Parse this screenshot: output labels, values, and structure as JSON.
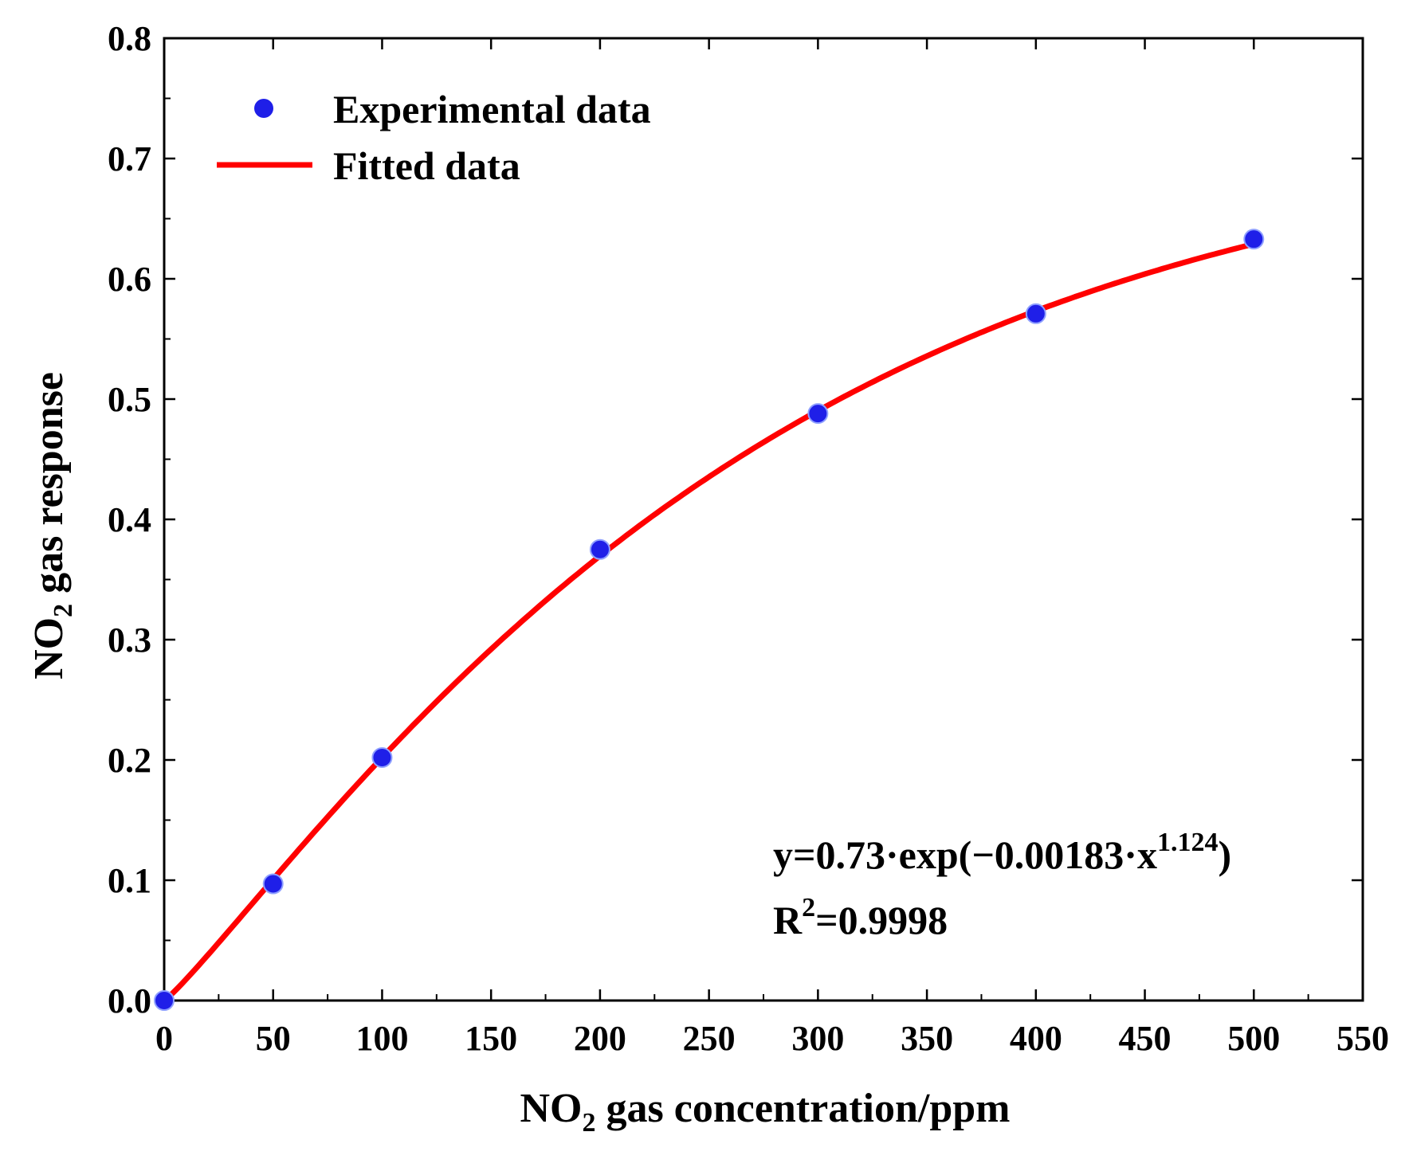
{
  "chart_data": {
    "type": "scatter",
    "title": "",
    "xlabel": {
      "main": "NO",
      "sub": "2",
      "rest": " gas concentration/ppm"
    },
    "ylabel": {
      "main": "NO",
      "sub": "2",
      "rest": " gas response"
    },
    "xlim": [
      0,
      550
    ],
    "ylim": [
      0,
      0.8
    ],
    "xticks": [
      0,
      50,
      100,
      150,
      200,
      250,
      300,
      350,
      400,
      450,
      500,
      550
    ],
    "yticks": [
      "0.0",
      "0.1",
      "0.2",
      "0.3",
      "0.4",
      "0.5",
      "0.6",
      "0.7",
      "0.8"
    ],
    "grid": false,
    "legend_position": "top-left",
    "series": [
      {
        "name": "Experimental data",
        "kind": "scatter",
        "color": "#1f1fe8",
        "x": [
          0,
          50,
          100,
          200,
          300,
          400,
          500
        ],
        "y": [
          0.0,
          0.097,
          0.202,
          0.375,
          0.488,
          0.571,
          0.633
        ]
      },
      {
        "name": "Fitted data",
        "kind": "line",
        "color": "#ff0000",
        "equation": {
          "a": 0.73,
          "b": 0.00183,
          "c": 1.124
        }
      }
    ],
    "annotations": {
      "equation": {
        "prefix": "y=0.73·exp(−0.00183·x",
        "sup": "1.124",
        "suffix": ")"
      },
      "r2": {
        "prefix": "R",
        "sup": "2",
        "suffix": "=0.9998"
      }
    }
  }
}
